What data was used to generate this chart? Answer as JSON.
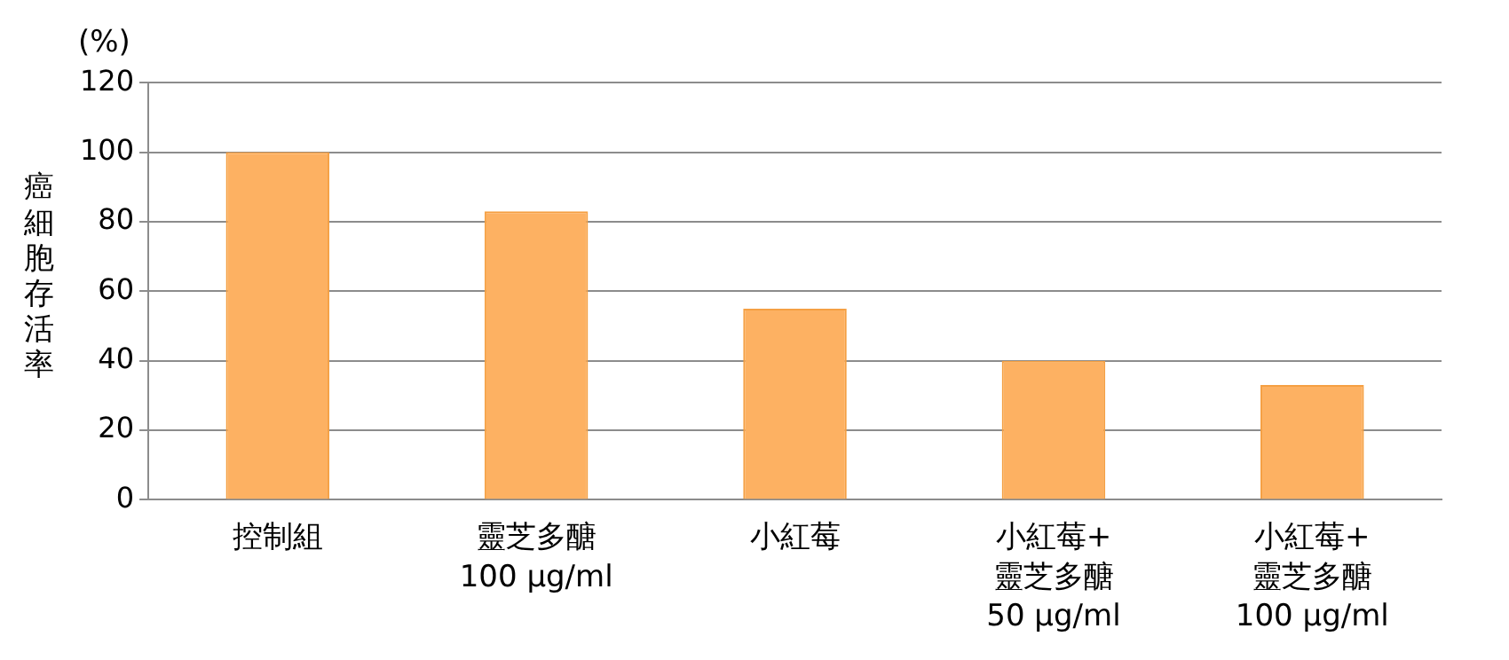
{
  "chart_data": {
    "type": "bar",
    "ylabel": "癌細胞存活率",
    "annotations": [
      "(%)"
    ],
    "categories": [
      "控制組",
      "靈芝多醣\n100 μg/ml",
      "小紅莓",
      "小紅莓+\n靈芝多醣\n50 μg/ml",
      "小紅莓+\n靈芝多醣\n100 μg/ml"
    ],
    "values": [
      100,
      83,
      55,
      40,
      33
    ],
    "color": "#fdb162",
    "ylim": [
      0,
      120
    ],
    "yticks": [
      0,
      20,
      40,
      60,
      80,
      100,
      120
    ],
    "grid": "y",
    "legend": false
  }
}
